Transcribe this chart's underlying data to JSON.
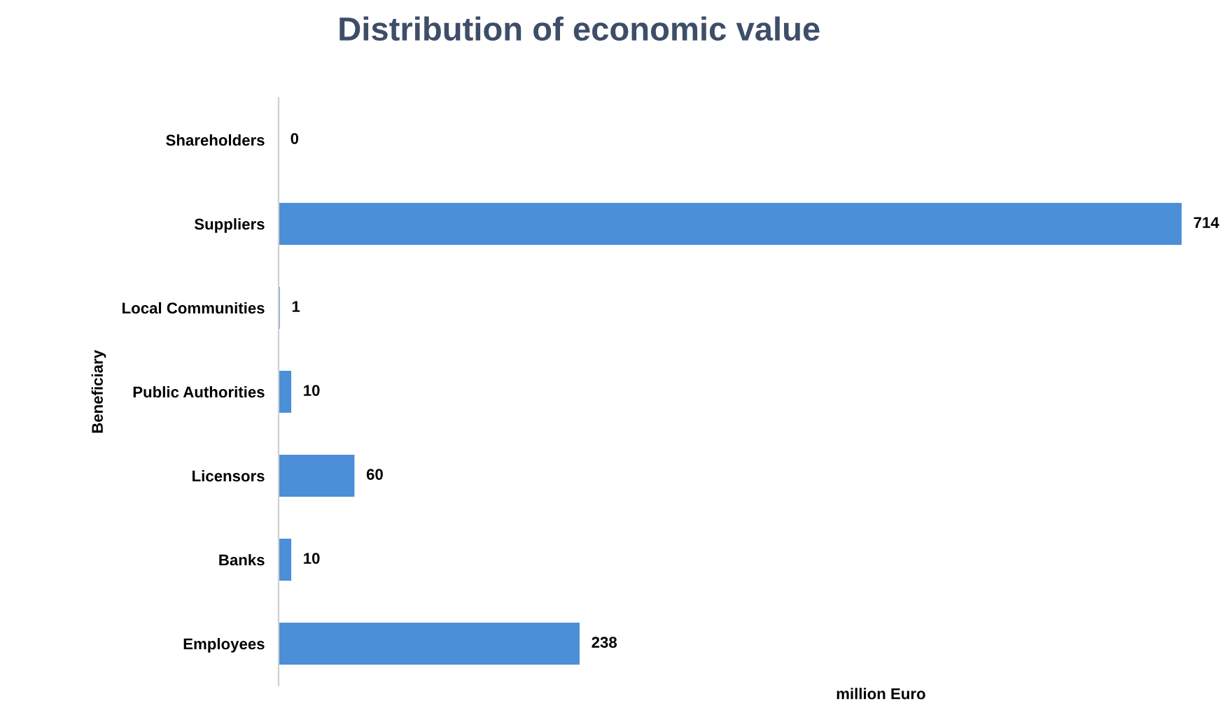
{
  "chart_data": {
    "type": "bar",
    "orientation": "horizontal",
    "title": "Distribution of economic value",
    "xlabel": "million Euro",
    "ylabel": "Beneficiary",
    "categories": [
      "Shareholders",
      "Suppliers",
      "Local Communities",
      "Public Authorities",
      "Licensors",
      "Banks",
      "Employees"
    ],
    "values": [
      0,
      714,
      1,
      10,
      60,
      10,
      238
    ],
    "color": "#4a8fd8",
    "data_labels": true,
    "grid": false,
    "legend": false,
    "tick_labels": "y"
  }
}
